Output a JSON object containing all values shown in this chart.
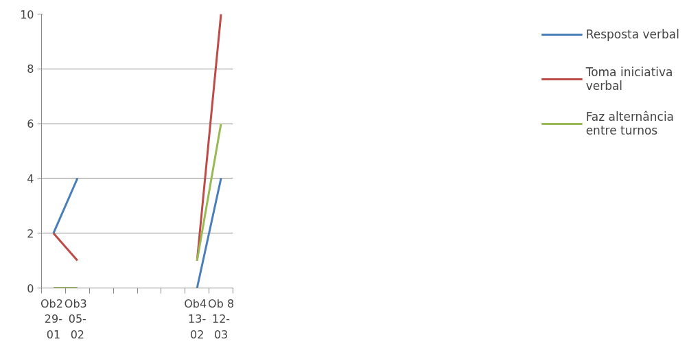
{
  "chart_data": {
    "type": "line",
    "categories": [
      "Ob2 29-01",
      "Ob3 05-02",
      null,
      null,
      null,
      null,
      "Ob4 13-02",
      "Ob 8 12-03"
    ],
    "series": [
      {
        "name": "Resposta verbal",
        "color": "#4a7ebb",
        "values": [
          2,
          4,
          null,
          null,
          null,
          null,
          0,
          4
        ]
      },
      {
        "name": "Toma iniciativa verbal",
        "color": "#be4b48",
        "values": [
          2,
          1,
          null,
          null,
          null,
          null,
          1,
          10
        ]
      },
      {
        "name": "Faz alternância entre turnos",
        "color": "#98b954",
        "values": [
          0,
          0,
          null,
          null,
          null,
          null,
          1,
          6
        ]
      }
    ],
    "ylim": [
      0,
      10
    ],
    "yticks": [
      0,
      2,
      4,
      6,
      8,
      10
    ],
    "grid": "y",
    "legend": "right",
    "marker": "none",
    "line_style": "solid"
  }
}
